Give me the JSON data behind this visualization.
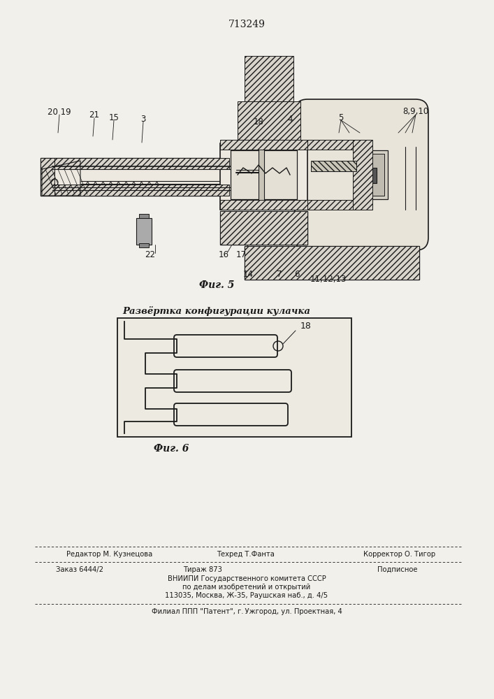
{
  "patent_number": "713249",
  "background_color": "#f2f0eb",
  "fig5_label": "Фиг. 5",
  "fig6_label": "Фиг. 6",
  "fig6_title": "Развёртка конфигурации кулачка",
  "footer_line1_left": "Редактор М. Кузнецова",
  "footer_line1_mid": "Техред Т.Фанта",
  "footer_line1_right": "Корректор О. Тигор",
  "footer_line2_left": "Заказ 6444/2",
  "footer_line2_mid": "Тираж 873",
  "footer_line2_right": "Подписное",
  "footer_line3": "ВНИИПИ Государственного комитета СССР",
  "footer_line4": "по делам изобретений и открытий",
  "footer_line5": "113035, Москва, Ж-35, Раушская наб., д. 4/5",
  "footer_line6": "Филиал ППП \"Патент\", г. Ужгород, ул. Проектная, 4",
  "draw_color": "#1a1a1a",
  "hatch_color": "#555555",
  "paper_color": "#f2f0eb"
}
